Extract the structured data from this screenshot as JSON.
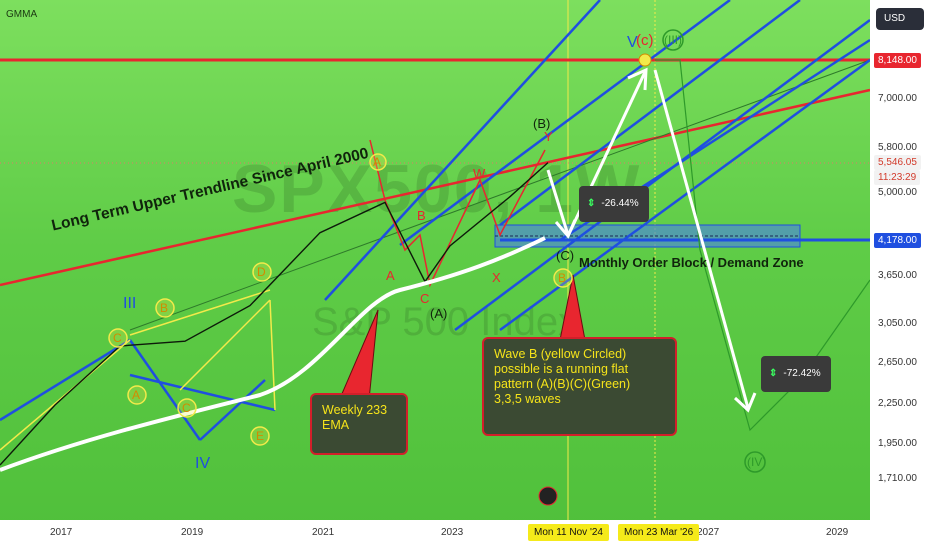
{
  "header": {
    "indicator": "GMMA"
  },
  "watermark": {
    "symbol": "SPX500, 1W",
    "name": "S&P 500 Index"
  },
  "axis": {
    "currency": "USD",
    "y_ticks": [
      "7,000.00",
      "5,800.00",
      "5,000.00",
      "3,650.00",
      "3,050.00",
      "2,650.00",
      "2,250.00",
      "1,950.00",
      "1,710.00"
    ],
    "price_tags": {
      "upper_line": "8,148.00",
      "last_price": "5,546.05",
      "countdown": "11:23:29",
      "demand_line": "4,178.00"
    },
    "x_ticks": [
      "2017",
      "2019",
      "2021",
      "2023",
      "2027",
      "2029"
    ],
    "date_tags": [
      "Mon 11 Nov '24",
      "Mon 23 Mar '26"
    ]
  },
  "annotations": {
    "trendline_text": "Long Term Upper Trendline Since April 2000",
    "demand_zone_text": "Monthly Order Block / Demand Zone",
    "ema_note": "Weekly 233\nEMA",
    "wave_note": "Wave B (yellow Circled)\npossible is a running flat\npattern (A)(B)(C)(Green)\n3,3,5 waves",
    "drop_small": "-26.44%",
    "drop_large": "-72.42%",
    "waves": {
      "III_blue": "III",
      "IV_blue": "IV",
      "V_blue": "V",
      "c_red": "(c)",
      "III_circle": "(III)",
      "IV_circle": "(IV)",
      "A_circle": "A",
      "B_circle": "B",
      "C_circle": "C",
      "D_circle": "D",
      "E_circle": "E",
      "A_top": "A",
      "A_red": "A",
      "B_red": "B",
      "C_red": "C",
      "W_red": "W",
      "X_red": "X",
      "Y_red": "Y",
      "A_paren": "(A)",
      "B_paren": "(B)",
      "C_paren": "(C)",
      "B_yellow": "B"
    }
  },
  "colors": {
    "background": "#5fcc47",
    "channel": "#1f4fe0",
    "trendline": "#e8262f",
    "ema": "#ffffff",
    "note_border": "#d21f2a",
    "note_text": "#f6e41a"
  },
  "chart_data": {
    "type": "line",
    "title": "",
    "series": [
      {
        "name": "",
        "x": [
          "2016",
          "2017",
          "2018",
          "2019",
          "2020",
          "2021",
          "2022",
          "2022-10",
          "2023",
          "2024",
          "2024-07"
        ],
        "values": [
          1850,
          2300,
          2850,
          2900,
          3300,
          4300,
          4800,
          3600,
          4100,
          4900,
          5546
        ]
      }
    ],
    "horizontal_levels": [
      8148,
      4178
    ],
    "ylim": [
      1600,
      8500
    ]
  }
}
